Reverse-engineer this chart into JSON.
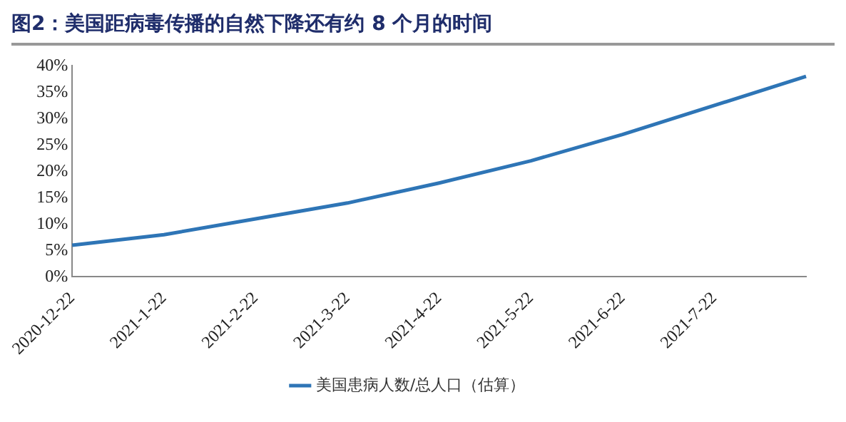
{
  "chart_data": {
    "type": "line",
    "title": "图2：美国距病毒传播的自然下降还有约 8 个月的时间",
    "categories": [
      "2020-12-22",
      "2021-1-22",
      "2021-2-22",
      "2021-3-22",
      "2021-4-22",
      "2021-5-22",
      "2021-6-22",
      "2021-7-22",
      null
    ],
    "series": [
      {
        "name": "美国患病人数/总人口（估算）",
        "color": "#2e75b6",
        "values": [
          6,
          8,
          11,
          14,
          17.8,
          22,
          27,
          32.5,
          38
        ]
      }
    ],
    "ylim": [
      0,
      40
    ],
    "yticks": [
      {
        "value": 0,
        "label": "0%"
      },
      {
        "value": 5,
        "label": "5%"
      },
      {
        "value": 10,
        "label": "10%"
      },
      {
        "value": 15,
        "label": "15%"
      },
      {
        "value": 20,
        "label": "20%"
      },
      {
        "value": 25,
        "label": "25%"
      },
      {
        "value": 30,
        "label": "30%"
      },
      {
        "value": 35,
        "label": "35%"
      },
      {
        "value": 40,
        "label": "40%"
      }
    ],
    "grid": false,
    "legend": "bottom",
    "marker": "none",
    "line_style": "solid"
  }
}
